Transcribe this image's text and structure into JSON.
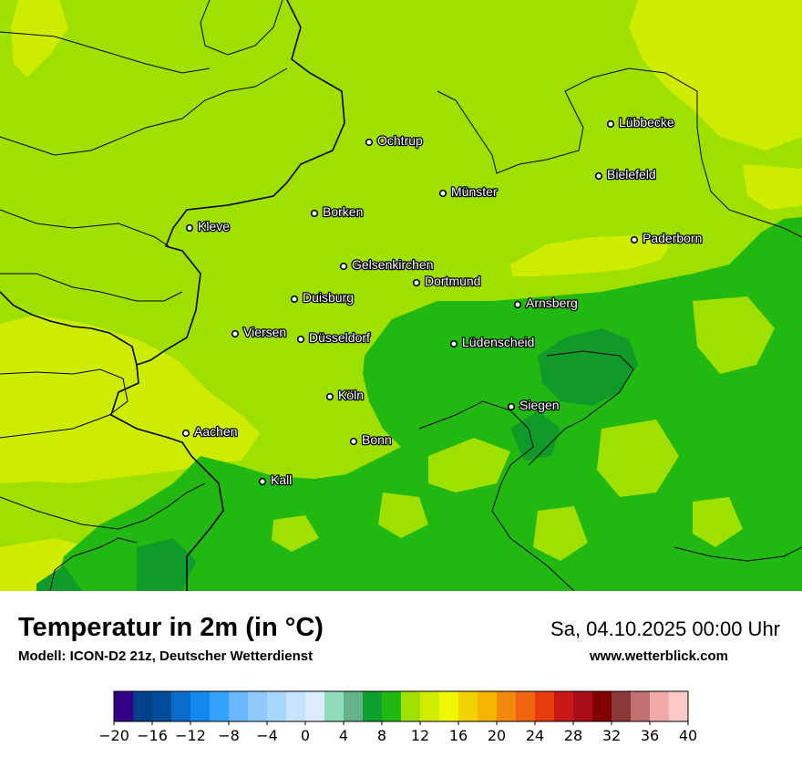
{
  "header": {
    "title": "Temperatur in 2m (in °C)",
    "subtitle": "Modell: ICON-D2 21z, Deutscher Wetterdienst",
    "datetime": "Sa, 04.10.2025 00:00 Uhr",
    "website": "www.wetterblick.com"
  },
  "map": {
    "cities": [
      {
        "name": "Lübbecke"
      },
      {
        "name": "Ochtrup"
      },
      {
        "name": "Bielefeld"
      },
      {
        "name": "Münster"
      },
      {
        "name": "Borken"
      },
      {
        "name": "Kleve"
      },
      {
        "name": "Paderborn"
      },
      {
        "name": "Gelsenkirchen"
      },
      {
        "name": "Dortmund"
      },
      {
        "name": "Duisburg"
      },
      {
        "name": "Arnsberg"
      },
      {
        "name": "Viersen"
      },
      {
        "name": "Düsseldorf"
      },
      {
        "name": "Lüdenscheid"
      },
      {
        "name": "Köln"
      },
      {
        "name": "Siegen"
      },
      {
        "name": "Aachen"
      },
      {
        "name": "Bonn"
      },
      {
        "name": "Kall"
      }
    ],
    "colors": {
      "base": "#a0e000",
      "warm": "#cdec00",
      "mid": "#22b812",
      "cool": "#109a2a"
    }
  },
  "legend": {
    "min": -20,
    "max": 40,
    "step": 2,
    "tick_labels": [
      "−20",
      "−16",
      "−12",
      "−8",
      "−4",
      "0",
      "4",
      "8",
      "12",
      "16",
      "20",
      "24",
      "28",
      "32",
      "36",
      "40"
    ],
    "colors": [
      "#330088",
      "#003f8a",
      "#004c98",
      "#0a6cc8",
      "#1188f0",
      "#34a2ff",
      "#6ab8ff",
      "#8ec9ff",
      "#a8d6ff",
      "#c6e3ff",
      "#dcebff",
      "#90dcbc",
      "#66b28c",
      "#10a030",
      "#22b812",
      "#a0e000",
      "#d0ec00",
      "#f0f800",
      "#f2d200",
      "#f4b400",
      "#f28a10",
      "#f06410",
      "#e83a0c",
      "#c81818",
      "#a80e18",
      "#820000",
      "#8a3838",
      "#c07070",
      "#f0a8a8",
      "#ffc8c8"
    ]
  }
}
